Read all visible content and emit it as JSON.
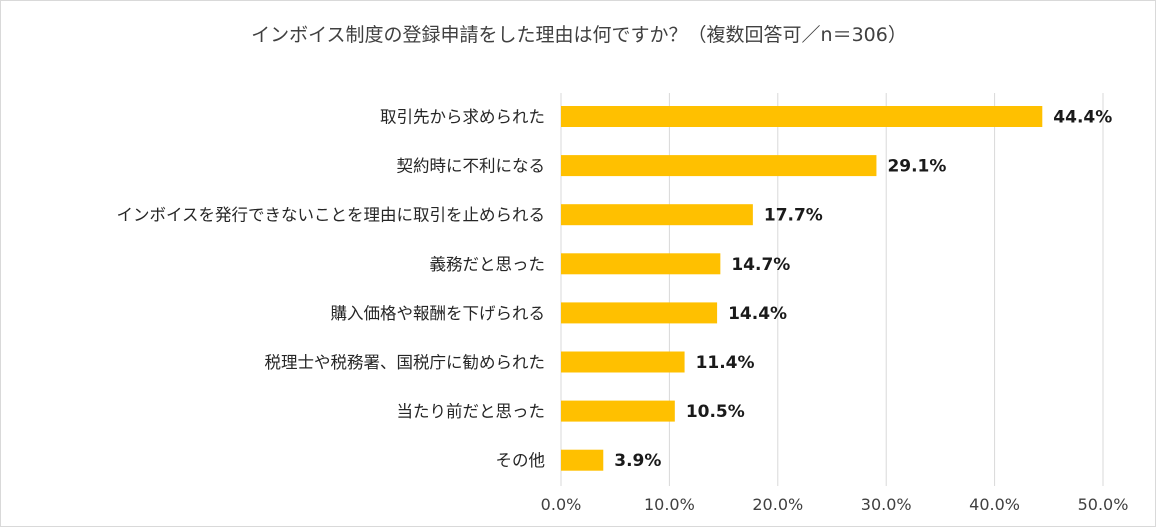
{
  "chart_data": {
    "type": "bar",
    "orientation": "horizontal",
    "title": "インボイス制度の登録申請をした理由は何ですか？（複数回答可／n＝306）",
    "categories": [
      "取引先から求められた",
      "契約時に不利になる",
      "インボイスを発行できないことを理由に取引を止められる",
      "義務だと思った",
      "購入価格や報酬を下げられる",
      "税理士や税務署、国税庁に勧められた",
      "当たり前だと思った",
      "その他"
    ],
    "values": [
      44.4,
      29.1,
      17.7,
      14.7,
      14.4,
      11.4,
      10.5,
      3.9
    ],
    "value_labels": [
      "44.4%",
      "29.1%",
      "17.7%",
      "14.7%",
      "14.4%",
      "11.4%",
      "10.5%",
      "3.9%"
    ],
    "xlim": [
      0,
      50
    ],
    "x_ticks": [
      "0.0%",
      "10.0%",
      "20.0%",
      "30.0%",
      "40.0%",
      "50.0%"
    ],
    "x_tick_values": [
      0,
      10,
      20,
      30,
      40,
      50
    ],
    "xlabel": "",
    "ylabel": "",
    "grid": "vertical",
    "legend": "none",
    "colors": {
      "bar": "#FFC000",
      "grid": "#d9d9d9",
      "frame": "#d9d9d9"
    }
  }
}
